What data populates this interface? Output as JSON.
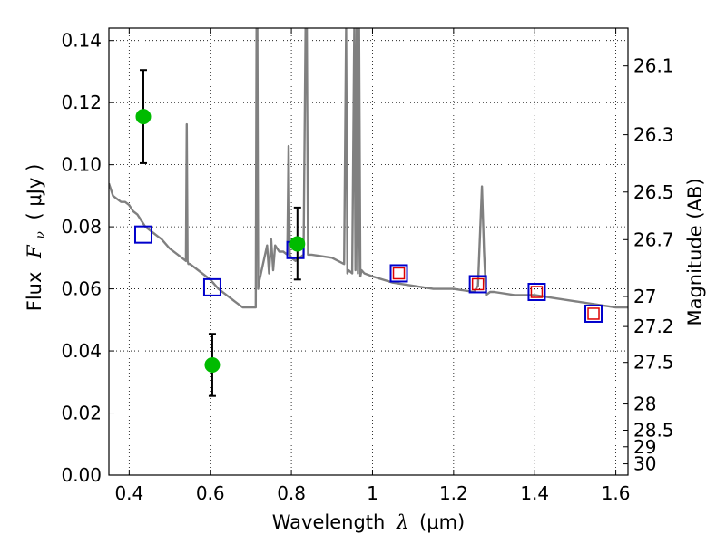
{
  "chart_data": {
    "type": "scatter",
    "xlabel": "Wavelength",
    "xlabel_symbol": "λ",
    "xlabel_unit": "(μm)",
    "ylabel": "Flux",
    "ylabel_symbol": "F",
    "ylabel_subscript": "ν",
    "ylabel_unit": "( μJy )",
    "y2label": "Magnitude (AB)",
    "xlim": [
      0.35,
      1.63
    ],
    "ylim": [
      0.0,
      0.144
    ],
    "grid": true,
    "x_ticks": [
      0.4,
      0.6,
      0.8,
      1.0,
      1.2,
      1.4,
      1.6
    ],
    "x_tick_labels": [
      "0.4",
      "0.6",
      "0.8",
      "1",
      "1.2",
      "1.4",
      "1.6"
    ],
    "y_ticks": [
      0.0,
      0.02,
      0.04,
      0.06,
      0.08,
      0.1,
      0.12,
      0.14
    ],
    "y_tick_labels": [
      "0.00",
      "0.02",
      "0.04",
      "0.06",
      "0.08",
      "0.10",
      "0.12",
      "0.14"
    ],
    "y2_ticks": [
      26.1,
      26.3,
      26.5,
      26.7,
      27.0,
      27.2,
      27.5,
      28.0,
      28.5,
      29.0,
      30.0
    ],
    "y2_tick_labels": [
      "26.1",
      "26.3",
      "26.5",
      "26.7",
      "27",
      "27.2",
      "27.5",
      "28",
      "28.5",
      "29",
      "30"
    ],
    "colors": {
      "model": "#808080",
      "observed": "#00bb00",
      "error_bar": "#000000",
      "model_phot": "#0000cc",
      "model_phot_inner": "#dd0000"
    },
    "series": [
      {
        "kind": "model_spectrum",
        "x": [
          0.35,
          0.36,
          0.37,
          0.38,
          0.39,
          0.4,
          0.41,
          0.42,
          0.43,
          0.44,
          0.45,
          0.46,
          0.47,
          0.48,
          0.5,
          0.52,
          0.54,
          0.542,
          0.544,
          0.546,
          0.55,
          0.57,
          0.6,
          0.62,
          0.64,
          0.66,
          0.68,
          0.7,
          0.712,
          0.714,
          0.716,
          0.718,
          0.72,
          0.73,
          0.74,
          0.745,
          0.75,
          0.755,
          0.76,
          0.77,
          0.78,
          0.79,
          0.793,
          0.796,
          0.8,
          0.81,
          0.82,
          0.83,
          0.835,
          0.838,
          0.841,
          0.85,
          0.9,
          0.93,
          0.935,
          0.938,
          0.941,
          0.95,
          0.955,
          0.958,
          0.961,
          0.964,
          0.967,
          0.97,
          0.973,
          0.98,
          1.0,
          1.05,
          1.1,
          1.15,
          1.2,
          1.25,
          1.26,
          1.27,
          1.275,
          1.28,
          1.29,
          1.3,
          1.35,
          1.4,
          1.45,
          1.5,
          1.55,
          1.6,
          1.63
        ],
        "y": [
          0.094,
          0.09,
          0.089,
          0.088,
          0.088,
          0.087,
          0.085,
          0.084,
          0.082,
          0.08,
          0.079,
          0.078,
          0.077,
          0.076,
          0.073,
          0.071,
          0.069,
          0.113,
          0.069,
          0.068,
          0.068,
          0.066,
          0.063,
          0.06,
          0.058,
          0.056,
          0.054,
          0.054,
          0.054,
          0.144,
          0.144,
          0.06,
          0.062,
          0.068,
          0.074,
          0.065,
          0.076,
          0.066,
          0.074,
          0.072,
          0.072,
          0.071,
          0.106,
          0.071,
          0.07,
          0.069,
          0.07,
          0.071,
          0.144,
          0.144,
          0.071,
          0.071,
          0.07,
          0.068,
          0.144,
          0.065,
          0.066,
          0.065,
          0.144,
          0.066,
          0.144,
          0.065,
          0.144,
          0.064,
          0.066,
          0.065,
          0.064,
          0.062,
          0.061,
          0.06,
          0.06,
          0.059,
          0.061,
          0.093,
          0.072,
          0.058,
          0.059,
          0.059,
          0.058,
          0.058,
          0.057,
          0.056,
          0.055,
          0.054,
          0.054
        ]
      },
      {
        "kind": "observed",
        "name": "",
        "x": [
          0.435,
          0.605,
          0.815
        ],
        "y": [
          0.1155,
          0.0355,
          0.0745
        ],
        "yerr_low": [
          0.1005,
          0.0255,
          0.063
        ],
        "yerr_high": [
          0.1305,
          0.0455,
          0.0862
        ]
      },
      {
        "kind": "model_photometry",
        "x": [
          0.435,
          0.605,
          0.81,
          1.065,
          1.26,
          1.405,
          1.545
        ],
        "y": [
          0.0775,
          0.0605,
          0.0725,
          0.065,
          0.0615,
          0.059,
          0.052
        ],
        "inner": [
          false,
          false,
          false,
          true,
          true,
          true,
          true
        ]
      }
    ]
  }
}
